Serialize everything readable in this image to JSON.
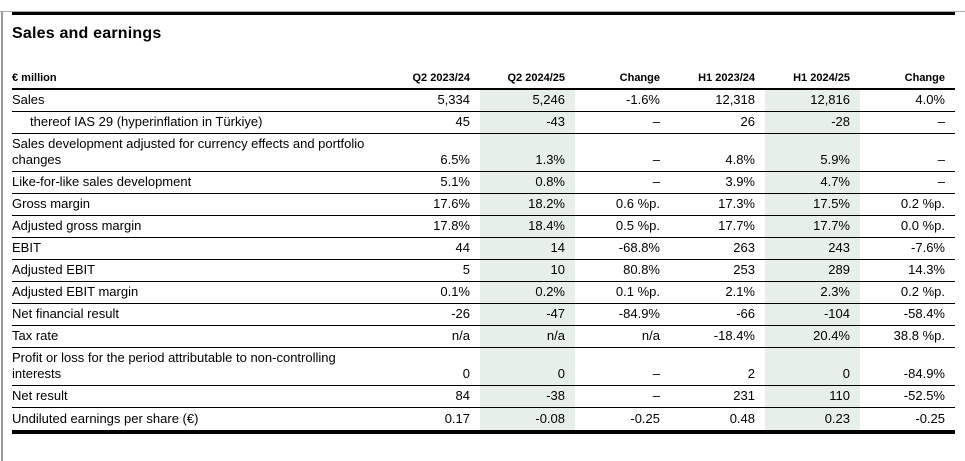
{
  "page": {
    "title": "Sales and earnings",
    "band_color": "#e7efe9"
  },
  "table": {
    "unit_label": "€ million",
    "columns": [
      "Q2 2023/24",
      "Q2 2024/25",
      "Change",
      "H1 2023/24",
      "H1 2024/25",
      "Change"
    ],
    "highlight_columns": [
      1,
      4
    ],
    "rows": [
      {
        "label": "Sales",
        "indent": false,
        "values": [
          "5,334",
          "5,246",
          "-1.6%",
          "12,318",
          "12,816",
          "4.0%"
        ]
      },
      {
        "label": "thereof IAS 29 (hyperinflation in Türkiye)",
        "indent": true,
        "values": [
          "45",
          "-43",
          "–",
          "26",
          "-28",
          "–"
        ]
      },
      {
        "label": "Sales development adjusted for currency effects and portfolio changes",
        "indent": false,
        "values": [
          "6.5%",
          "1.3%",
          "–",
          "4.8%",
          "5.9%",
          "–"
        ]
      },
      {
        "label": "Like-for-like sales development",
        "indent": false,
        "values": [
          "5.1%",
          "0.8%",
          "–",
          "3.9%",
          "4.7%",
          "–"
        ]
      },
      {
        "label": "Gross margin",
        "indent": false,
        "values": [
          "17.6%",
          "18.2%",
          "0.6 %p.",
          "17.3%",
          "17.5%",
          "0.2 %p."
        ]
      },
      {
        "label": "Adjusted gross margin",
        "indent": false,
        "values": [
          "17.8%",
          "18.4%",
          "0.5 %p.",
          "17.7%",
          "17.7%",
          "0.0 %p."
        ]
      },
      {
        "label": "EBIT",
        "indent": false,
        "values": [
          "44",
          "14",
          "-68.8%",
          "263",
          "243",
          "-7.6%"
        ]
      },
      {
        "label": "Adjusted EBIT",
        "indent": false,
        "values": [
          "5",
          "10",
          "80.8%",
          "253",
          "289",
          "14.3%"
        ]
      },
      {
        "label": "Adjusted EBIT margin",
        "indent": false,
        "values": [
          "0.1%",
          "0.2%",
          "0.1 %p.",
          "2.1%",
          "2.3%",
          "0.2 %p."
        ]
      },
      {
        "label": "Net financial result",
        "indent": false,
        "values": [
          "-26",
          "-47",
          "-84.9%",
          "-66",
          "-104",
          "-58.4%"
        ]
      },
      {
        "label": "Tax rate",
        "indent": false,
        "values": [
          "n/a",
          "n/a",
          "n/a",
          "-18.4%",
          "20.4%",
          "38.8 %p."
        ]
      },
      {
        "label": "Profit or loss for the period attributable to non-controlling interests",
        "indent": false,
        "values": [
          "0",
          "0",
          "–",
          "2",
          "0",
          "-84.9%"
        ]
      },
      {
        "label": "Net result",
        "indent": false,
        "values": [
          "84",
          "-38",
          "–",
          "231",
          "110",
          "-52.5%"
        ]
      },
      {
        "label": "Undiluted earnings per share (€)",
        "indent": false,
        "values": [
          "0.17",
          "-0.08",
          "-0.25",
          "0.48",
          "0.23",
          "-0.25"
        ]
      }
    ]
  }
}
